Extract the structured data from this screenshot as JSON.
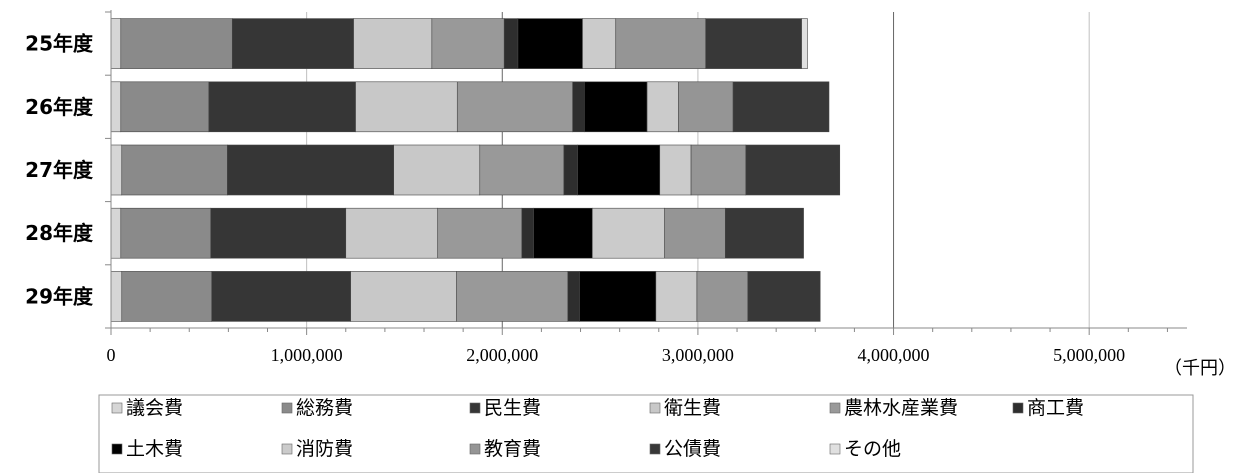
{
  "chart_data": {
    "type": "bar",
    "orientation": "horizontal",
    "stacked": true,
    "categories": [
      "25年度",
      "26年度",
      "27年度",
      "28年度",
      "29年度"
    ],
    "unit": "（千円）",
    "xlim": [
      0,
      5500000
    ],
    "major_ticks": [
      0,
      1000000,
      2000000,
      3000000,
      4000000,
      5000000
    ],
    "tick_labels": [
      "0",
      "1,000,000",
      "2,000,000",
      "3,000,000",
      "4,000,000",
      "5,000,000"
    ],
    "minor_tick_step": 200000,
    "legend_position": "bottom",
    "series": [
      {
        "name": "議会費",
        "color": "#d6d6d6",
        "values": [
          50000,
          50000,
          55000,
          50000,
          55000
        ]
      },
      {
        "name": "総務費",
        "color": "#8a8a8a",
        "values": [
          570000,
          450000,
          540000,
          460000,
          460000
        ]
      },
      {
        "name": "民生費",
        "color": "#363636",
        "values": [
          620000,
          750000,
          850000,
          690000,
          710000
        ]
      },
      {
        "name": "衛生費",
        "color": "#c8c8c8",
        "values": [
          400000,
          520000,
          440000,
          470000,
          540000
        ]
      },
      {
        "name": "農林水産業費",
        "color": "#999999",
        "values": [
          370000,
          590000,
          430000,
          430000,
          570000
        ]
      },
      {
        "name": "商工費",
        "color": "#2e2e2e",
        "values": [
          70000,
          60000,
          70000,
          60000,
          60000
        ]
      },
      {
        "name": "土木費",
        "color": "#000000",
        "values": [
          330000,
          320000,
          420000,
          300000,
          390000
        ]
      },
      {
        "name": "消防費",
        "color": "#cbcbcb",
        "values": [
          170000,
          160000,
          160000,
          370000,
          210000
        ]
      },
      {
        "name": "教育費",
        "color": "#959595",
        "values": [
          460000,
          280000,
          280000,
          310000,
          260000
        ]
      },
      {
        "name": "公債費",
        "color": "#383838",
        "values": [
          490000,
          490000,
          480000,
          400000,
          370000
        ]
      },
      {
        "name": "その他",
        "color": "#e0e0e0",
        "values": [
          30000,
          0,
          0,
          0,
          0
        ]
      }
    ]
  }
}
